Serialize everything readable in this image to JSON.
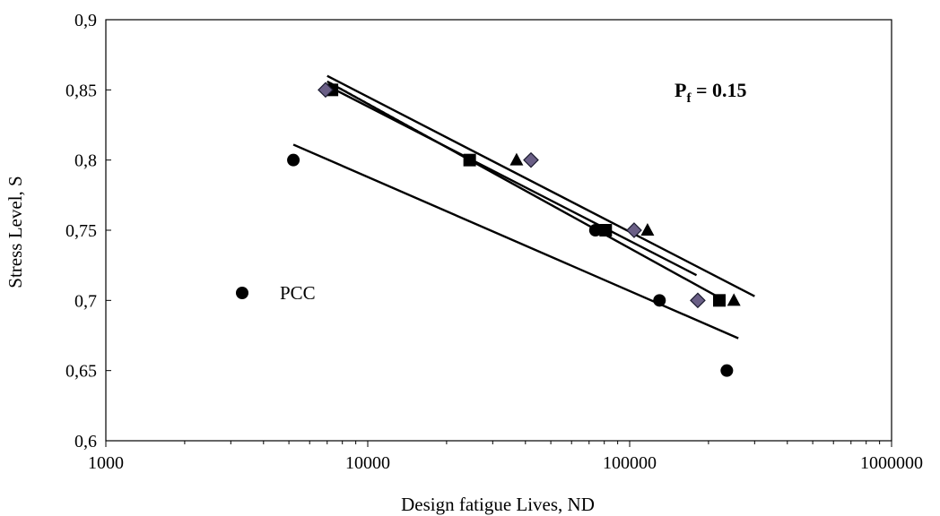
{
  "chart_data": {
    "type": "scatter",
    "x_scale": "log",
    "xlim": [
      1000,
      1000000
    ],
    "ylim": [
      0.6,
      0.9
    ],
    "xlabel": "Design fatigue Lives, ND",
    "ylabel": "Stress Level, S",
    "x_ticks": [
      "1000",
      "10000",
      "100000",
      "1000000"
    ],
    "y_ticks": [
      "0,6",
      "0,65",
      "0,7",
      "0,75",
      "0,8",
      "0,85",
      "0,9"
    ],
    "y_tick_values": [
      0.6,
      0.65,
      0.7,
      0.75,
      0.8,
      0.85,
      0.9
    ],
    "x_tick_values": [
      1000,
      10000,
      100000,
      1000000
    ],
    "annotation": {
      "base": "P",
      "sub": "f",
      "rest": " = 0.15"
    },
    "grid": false,
    "legend": {
      "placement": "left",
      "label": "PCC"
    },
    "series": [
      {
        "name": "PCC",
        "marker": "circle",
        "x": [
          5200,
          74000,
          130000,
          235000
        ],
        "y": [
          0.8,
          0.75,
          0.7,
          0.65
        ],
        "trend": {
          "x": [
            5200,
            260000
          ],
          "y": [
            0.811,
            0.673
          ],
          "dash": false
        }
      },
      {
        "marker": "square",
        "x": [
          7300,
          24500,
          81000,
          220000
        ],
        "y": [
          0.85,
          0.8,
          0.75,
          0.7
        ],
        "trend": {
          "x": [
            7000,
            180000
          ],
          "y": [
            0.853,
            0.718
          ],
          "dash": false
        }
      },
      {
        "marker": "triangle",
        "x": [
          37000,
          117000,
          250000
        ],
        "y": [
          0.8,
          0.75,
          0.7
        ],
        "trend": {
          "x": [
            7000,
            300000
          ],
          "y": [
            0.86,
            0.703
          ],
          "dash": false
        }
      },
      {
        "marker": "diamond",
        "x": [
          6900,
          42000,
          104000,
          182000
        ],
        "y": [
          0.85,
          0.8,
          0.75,
          0.7
        ],
        "trend": {
          "x": [
            7200,
            230000
          ],
          "y": [
            0.855,
            0.7
          ],
          "dash": true
        }
      }
    ],
    "extra_trend": {
      "x": [
        7000,
        230000
      ],
      "y": [
        0.856,
        0.7
      ]
    },
    "colors": {
      "marker": "#000000",
      "diamond_fill": "#6a5f86",
      "diamond_stroke": "#1a1a2e",
      "axis": "#000000"
    }
  }
}
